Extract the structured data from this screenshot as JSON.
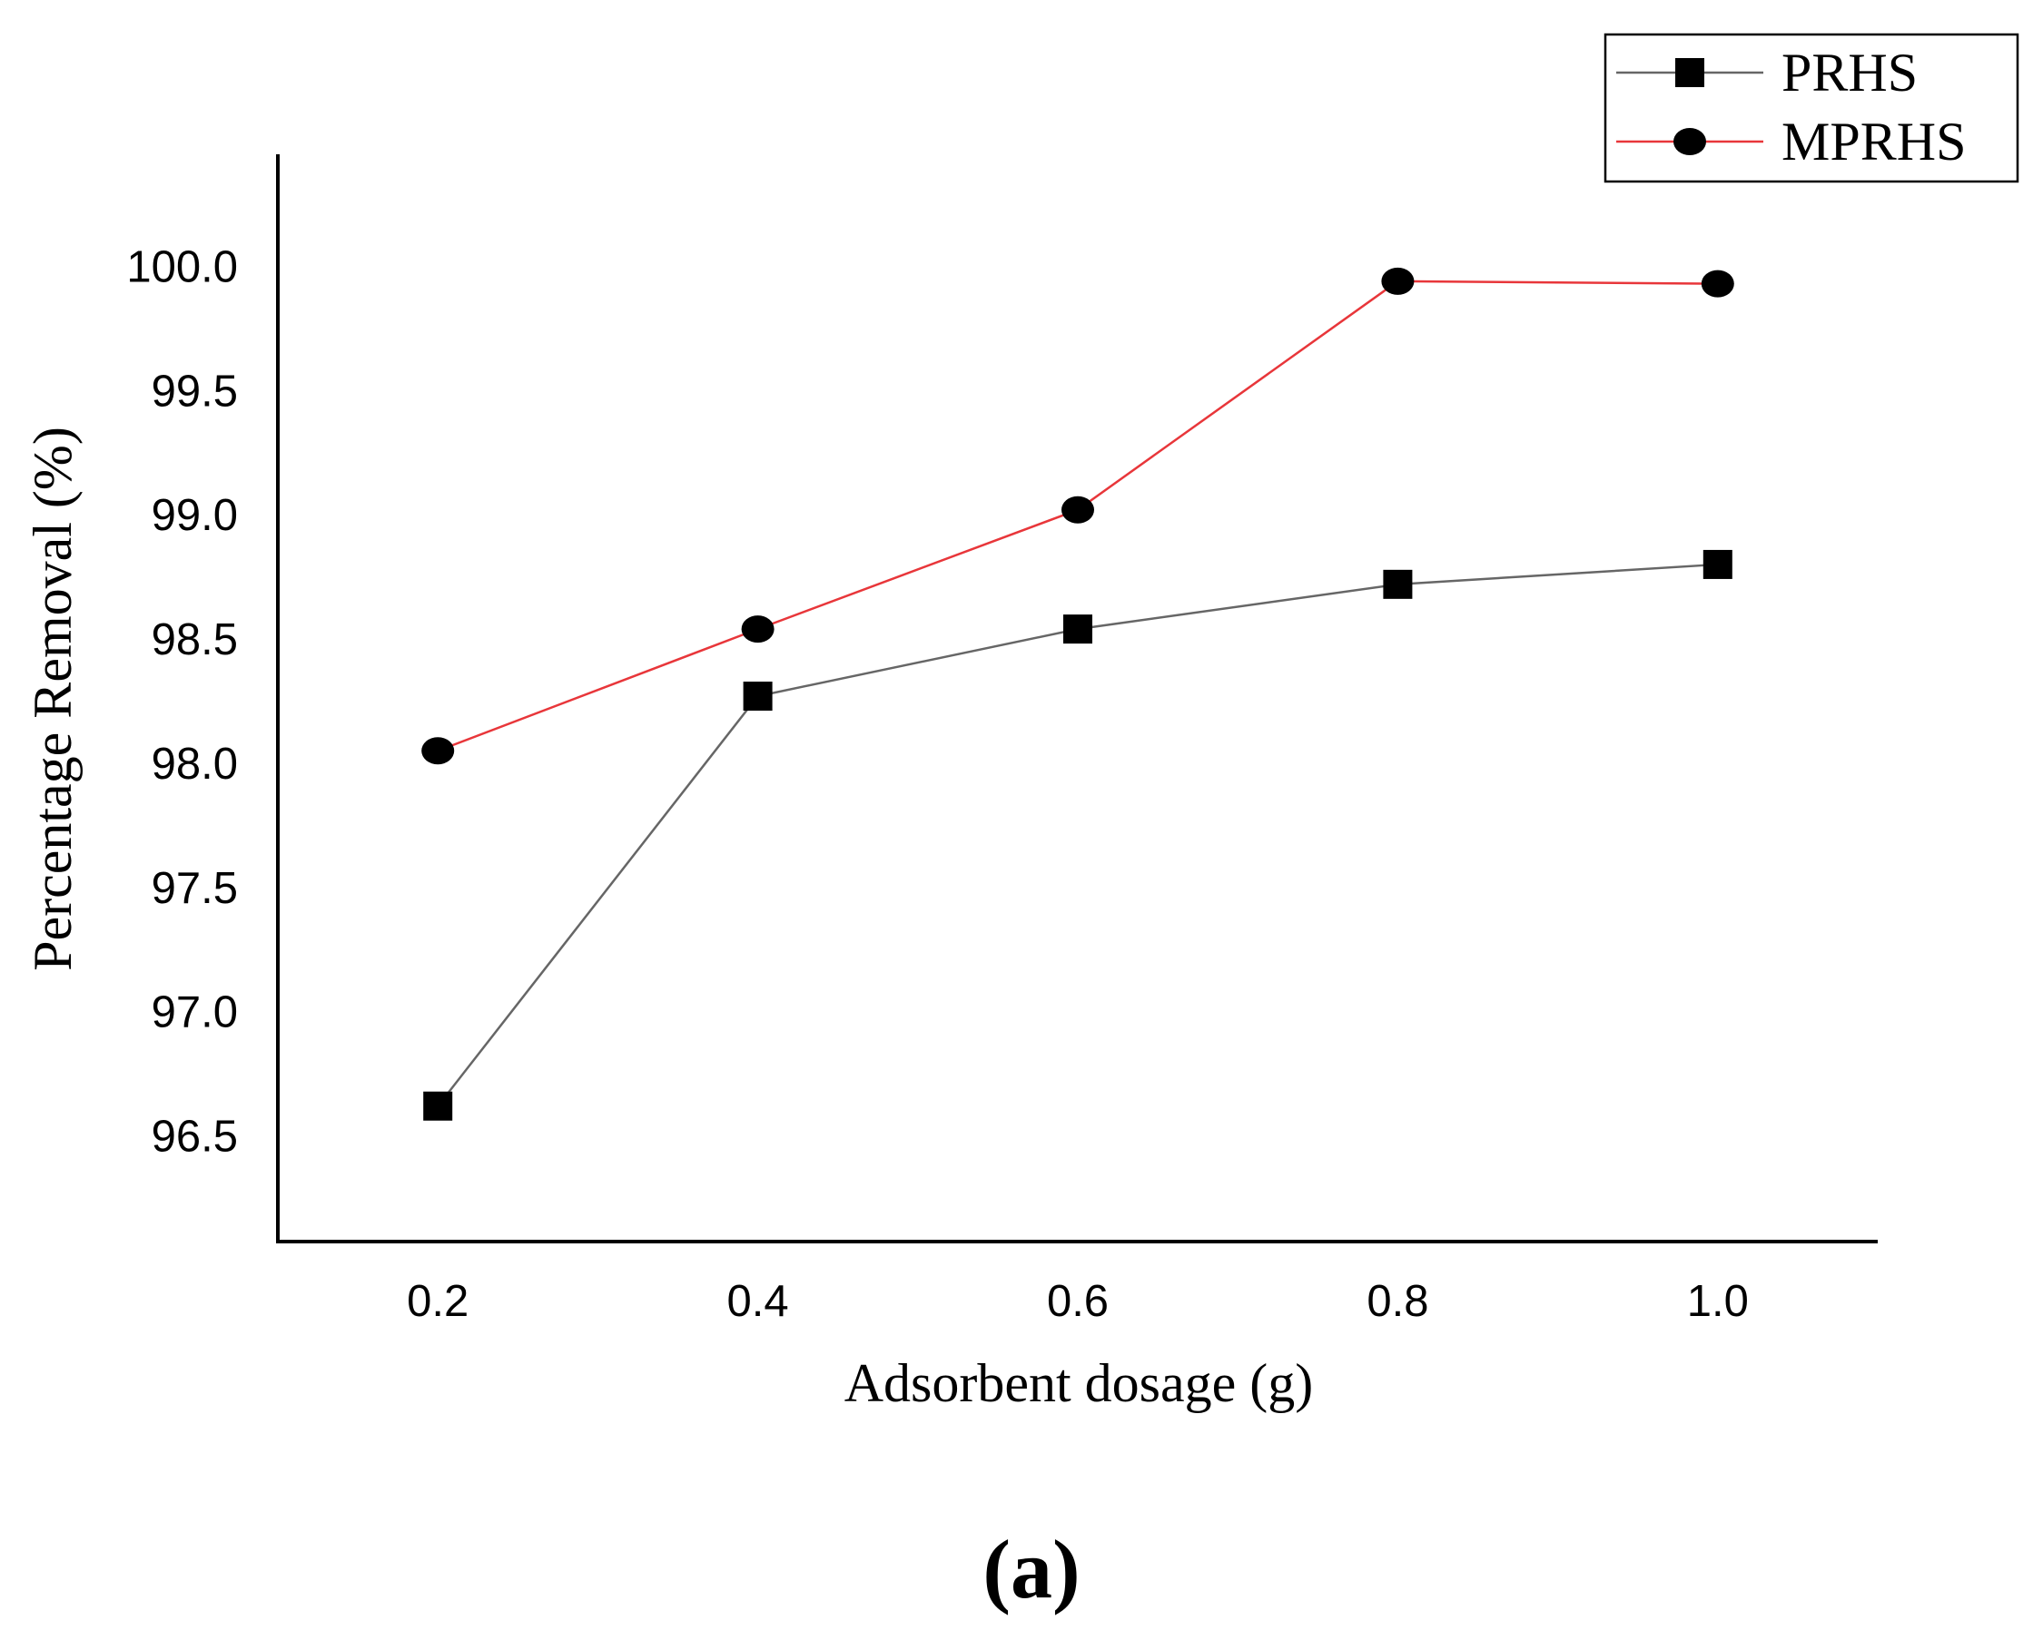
{
  "chart_data": {
    "type": "line",
    "xlabel": "Adsorbent dosage (g)",
    "ylabel": "Percentage Removal (%)",
    "x": [
      0.2,
      0.4,
      0.6,
      0.8,
      1.0
    ],
    "x_tick_labels": [
      "0.2",
      "0.4",
      "0.6",
      "0.8",
      "1.0"
    ],
    "y_tick_values": [
      96.5,
      97.0,
      97.5,
      98.0,
      98.5,
      99.0,
      99.5,
      100.0
    ],
    "y_tick_labels": [
      "96.5",
      "97.0",
      "97.5",
      "98.0",
      "98.5",
      "99.0",
      "99.5",
      "100.0"
    ],
    "xlim": [
      0.1,
      1.1
    ],
    "ylim": [
      96.25,
      100.25
    ],
    "grid": false,
    "legend_position": "top-right",
    "series": [
      {
        "name": "PRHS",
        "values": [
          96.62,
          98.27,
          98.54,
          98.72,
          98.8
        ],
        "color": "#666666",
        "marker": "square"
      },
      {
        "name": "MPRHS",
        "values": [
          98.05,
          98.54,
          99.02,
          99.94,
          99.93
        ],
        "color": "#e8363a",
        "marker": "circle"
      }
    ],
    "panel_label": "(a)"
  }
}
